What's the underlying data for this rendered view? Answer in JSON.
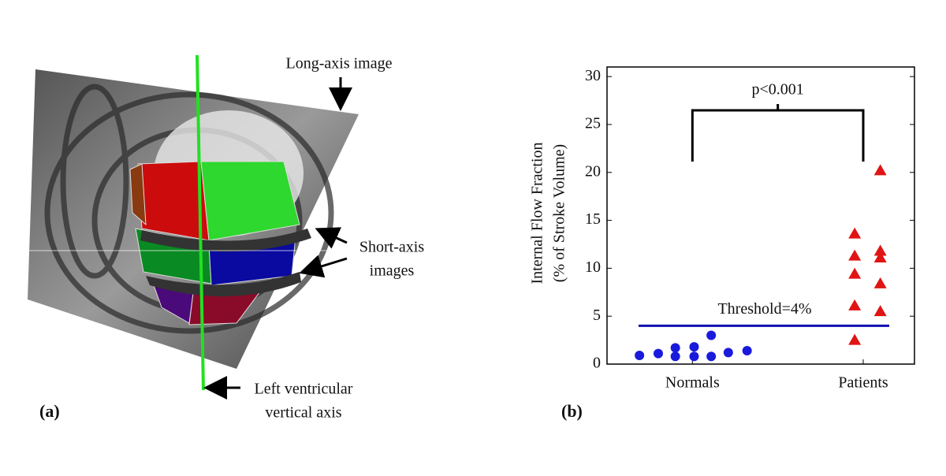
{
  "panel_a": {
    "label": "(a)",
    "long_axis": "Long-axis image",
    "short_axis": [
      "Short-axis",
      "images"
    ],
    "vertical_axis": [
      "Left ventricular",
      "vertical axis"
    ]
  },
  "chart_data": {
    "type": "scatter",
    "label": "(b)",
    "ylabel": [
      "Internal Flow Fraction",
      "(% of Stroke Volume)"
    ],
    "annotation": "p<0.001",
    "series": [
      {
        "color": "#1a1adc",
        "marker": "circle",
        "x": [
          0.69,
          0.8,
          0.9,
          0.9,
          1.01,
          1.01,
          1.11,
          1.11,
          1.21,
          1.32
        ],
        "values": [
          0.9,
          1.1,
          1.7,
          0.8,
          1.8,
          0.8,
          3.0,
          0.8,
          1.2,
          1.4
        ]
      },
      {
        "color": "#e01414",
        "marker": "triangle",
        "x": [
          1.95,
          1.95,
          1.95,
          1.95,
          1.95,
          2.1,
          2.1,
          2.1,
          2.1,
          2.1
        ],
        "values": [
          13.6,
          11.3,
          9.4,
          6.1,
          2.5,
          20.2,
          11.8,
          11.1,
          8.4,
          5.5
        ]
      }
    ],
    "threshold": {
      "value": 4,
      "label": "Threshold=4%",
      "color": "#1010b0"
    },
    "xlim": [
      0.5,
      2.3
    ],
    "ylim": [
      0,
      31
    ],
    "xticks": [
      {
        "value": 1,
        "label": "Normals"
      },
      {
        "value": 2,
        "label": "Patients"
      }
    ],
    "yticks": [
      0,
      5,
      10,
      15,
      20,
      25,
      30
    ]
  }
}
